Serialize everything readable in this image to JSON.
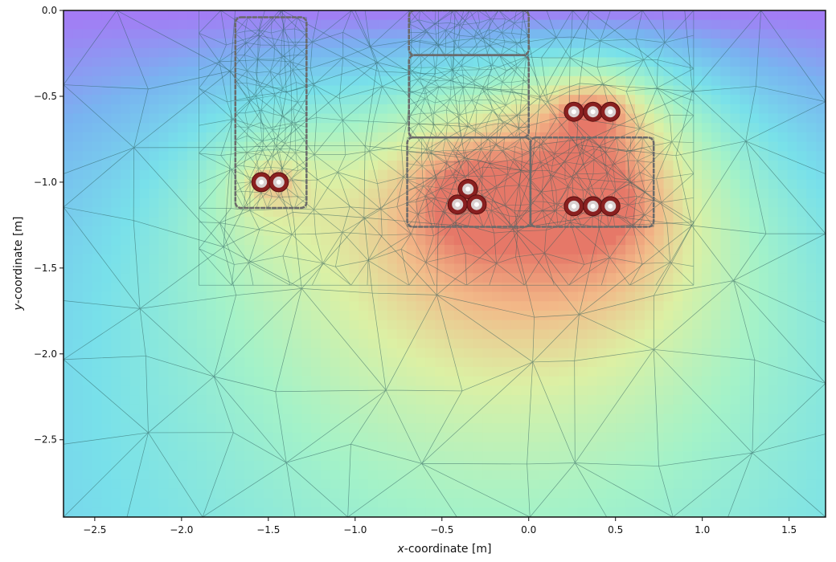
{
  "chart_data": {
    "type": "heatmap",
    "title": "",
    "xlabel_italic": "x",
    "xlabel_rest": "-coordinate [m]",
    "ylabel_italic": "y",
    "ylabel_rest": "-coordinate [m]",
    "xlim": [
      -2.68,
      1.71
    ],
    "ylim": [
      -2.95,
      0.0
    ],
    "xticks": [
      -2.5,
      -2.0,
      -1.5,
      -1.0,
      -0.5,
      0.0,
      0.5,
      1.0,
      1.5
    ],
    "xtick_labels": [
      "−2.5",
      "−2.0",
      "−1.5",
      "−1.0",
      "−0.5",
      "0.0",
      "0.5",
      "1.0",
      "1.5"
    ],
    "yticks": [
      0.0,
      -0.5,
      -1.0,
      -1.5,
      -2.0,
      -2.5
    ],
    "ytick_labels": [
      "0.0",
      "−0.5",
      "−1.0",
      "−1.5",
      "−2.0",
      "−2.5"
    ],
    "colormap": [
      "#a678f5",
      "#78b4f0",
      "#78e0ea",
      "#a4f2c8",
      "#dcf0a4",
      "#f2b888",
      "#e67868"
    ],
    "cables": [
      {
        "group": "left-pair",
        "x": -1.54,
        "y": -1.0
      },
      {
        "group": "left-pair",
        "x": -1.44,
        "y": -1.0
      },
      {
        "group": "trefoil",
        "x": -0.35,
        "y": -1.04
      },
      {
        "group": "trefoil",
        "x": -0.41,
        "y": -1.13
      },
      {
        "group": "trefoil",
        "x": -0.3,
        "y": -1.13
      },
      {
        "group": "flat-upper",
        "x": 0.26,
        "y": -0.59
      },
      {
        "group": "flat-upper",
        "x": 0.37,
        "y": -0.59
      },
      {
        "group": "flat-upper",
        "x": 0.47,
        "y": -0.59
      },
      {
        "group": "flat-lower",
        "x": 0.26,
        "y": -1.14
      },
      {
        "group": "flat-lower",
        "x": 0.37,
        "y": -1.14
      },
      {
        "group": "flat-lower",
        "x": 0.47,
        "y": -1.14
      }
    ],
    "regions": [
      {
        "name": "left-backfill",
        "x0": -1.69,
        "x1": -1.28,
        "y0": -0.04,
        "y1": -1.15
      },
      {
        "name": "top-layer",
        "x0": -0.69,
        "x1": 0.0,
        "y0": 0.0,
        "y1": -0.26
      },
      {
        "name": "upper-fill",
        "x0": -0.69,
        "x1": 0.0,
        "y0": -0.26,
        "y1": -0.74
      },
      {
        "name": "trefoil-backfill",
        "x0": -0.7,
        "x1": 0.01,
        "y0": -0.74,
        "y1": -1.26
      },
      {
        "name": "flat-backfill",
        "x0": 0.01,
        "x1": 0.72,
        "y0": -0.74,
        "y1": -1.26
      }
    ],
    "grid": false,
    "legend": "none"
  }
}
